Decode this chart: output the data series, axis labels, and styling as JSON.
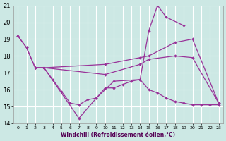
{
  "xlabel": "Windchill (Refroidissement éolien,°C)",
  "background_color": "#cce8e4",
  "grid_color": "#ffffff",
  "line_color": "#993399",
  "xlim": [
    -0.5,
    23.5
  ],
  "ylim": [
    14,
    21
  ],
  "yticks": [
    14,
    15,
    16,
    17,
    18,
    19,
    20,
    21
  ],
  "xticks": [
    0,
    1,
    2,
    3,
    4,
    5,
    6,
    7,
    8,
    9,
    10,
    11,
    12,
    13,
    14,
    15,
    16,
    17,
    18,
    19,
    20,
    21,
    22,
    23
  ],
  "line1_x": [
    0,
    1,
    2,
    3,
    4,
    5,
    6,
    7,
    8,
    9,
    10,
    11,
    12,
    13,
    14,
    15,
    16,
    17,
    18,
    19,
    20,
    21,
    22,
    23
  ],
  "line1_y": [
    19.2,
    18.5,
    17.3,
    17.3,
    16.6,
    15.9,
    15.2,
    15.1,
    15.4,
    15.5,
    16.1,
    16.1,
    16.3,
    16.5,
    16.6,
    16.0,
    15.8,
    15.5,
    15.3,
    15.2,
    15.1,
    15.1,
    15.1,
    15.1
  ],
  "line2_x": [
    0,
    1,
    2,
    3,
    7,
    9,
    11,
    14,
    15,
    16,
    17,
    19
  ],
  "line2_y": [
    19.2,
    18.5,
    17.3,
    17.3,
    14.3,
    15.5,
    16.5,
    16.6,
    19.5,
    21.0,
    20.3,
    19.8
  ],
  "line3_x": [
    2,
    3,
    10,
    14,
    15,
    18,
    20,
    23
  ],
  "line3_y": [
    17.3,
    17.3,
    17.5,
    17.9,
    18.0,
    18.8,
    19.0,
    15.2
  ],
  "line4_x": [
    2,
    3,
    10,
    14,
    15,
    18,
    20,
    23
  ],
  "line4_y": [
    17.3,
    17.3,
    16.9,
    17.5,
    17.8,
    18.0,
    17.9,
    15.2
  ]
}
